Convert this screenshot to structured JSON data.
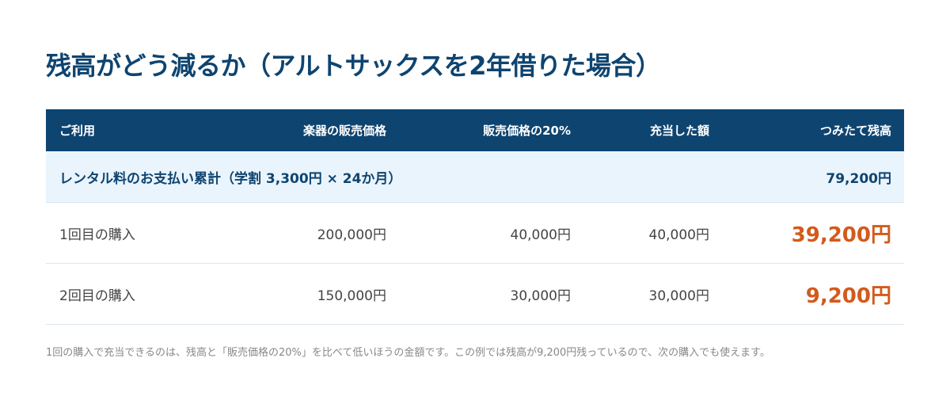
{
  "title": "残高がどう減るか（アルトサックスを2年借りた場合）",
  "table": {
    "headers": {
      "usage": "ご利用",
      "price": "楽器の販売価格",
      "twenty_percent": "販売価格の20%",
      "applied": "充当した額",
      "balance": "つみたて残高"
    },
    "summary": {
      "label": "レンタル料のお支払い累計（学割 3,300円 × 24か月）",
      "balance": "79,200円"
    },
    "rows": [
      {
        "usage": "1回目の購入",
        "price": "200,000円",
        "twenty_percent": "40,000円",
        "applied": "40,000円",
        "balance": "39,200円"
      },
      {
        "usage": "2回目の購入",
        "price": "150,000円",
        "twenty_percent": "30,000円",
        "applied": "30,000円",
        "balance": "9,200円"
      }
    ]
  },
  "footnote": "1回の購入で充当できるのは、残高と「販売価格の20%」を比べて低いほうの金額です。この例では残高が9,200円残っているので、次の購入でも使えます。",
  "colors": {
    "header_bg": "#0e4470",
    "summary_bg": "#eaf4fc",
    "highlight": "#d35a1c"
  }
}
